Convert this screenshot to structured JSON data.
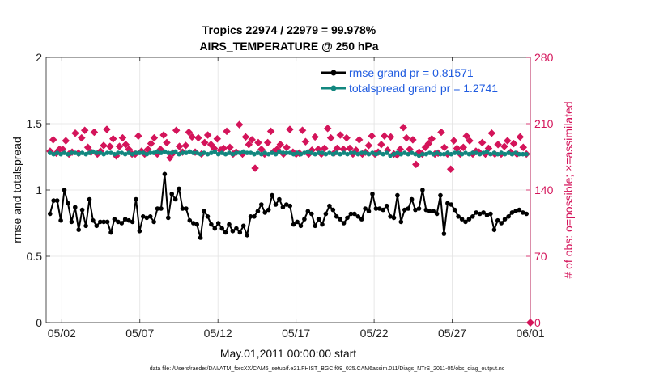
{
  "chart_data": {
    "type": "line",
    "title_line1": "Tropics 22974 / 22979 = 99.978%",
    "title_line2": "AIRS_TEMPERATURE @ 250 hPa",
    "xlabel": "May.01,2011 00:00:00 start",
    "ylabel": "rmse and totalspread",
    "y2label": "# of obs: o=possible; ×=assimilated",
    "xlim": [
      0,
      31
    ],
    "ylim": [
      0,
      2
    ],
    "y2lim": [
      0,
      280
    ],
    "x_ticks": [
      {
        "value": 1,
        "label": "05/02"
      },
      {
        "value": 6,
        "label": "05/07"
      },
      {
        "value": 11,
        "label": "05/12"
      },
      {
        "value": 16,
        "label": "05/17"
      },
      {
        "value": 21,
        "label": "05/22"
      },
      {
        "value": 26,
        "label": "05/27"
      },
      {
        "value": 31,
        "label": "06/01"
      }
    ],
    "y_ticks": [
      {
        "value": 0,
        "label": "0"
      },
      {
        "value": 0.5,
        "label": "0.5"
      },
      {
        "value": 1,
        "label": "1"
      },
      {
        "value": 1.5,
        "label": "1.5"
      },
      {
        "value": 2,
        "label": "2"
      }
    ],
    "y2_ticks": [
      {
        "value": 0,
        "label": "0"
      },
      {
        "value": 70,
        "label": "70"
      },
      {
        "value": 140,
        "label": "140"
      },
      {
        "value": 210,
        "label": "210"
      },
      {
        "value": 280,
        "label": "280"
      }
    ],
    "legend": [
      {
        "name": "rmse grand pr = 0.81571",
        "color": "#000000"
      },
      {
        "name": "totalspread grand pr = 1.2741",
        "color": "#12877f"
      }
    ],
    "series": [
      {
        "name": "rmse",
        "color": "#000000",
        "values": [
          0.82,
          0.92,
          0.92,
          0.77,
          1.0,
          0.9,
          0.76,
          0.87,
          0.7,
          0.85,
          0.73,
          0.93,
          0.77,
          0.73,
          0.76,
          0.76,
          0.76,
          0.68,
          0.78,
          0.76,
          0.75,
          0.78,
          0.77,
          0.76,
          0.93,
          0.69,
          0.8,
          0.79,
          0.8,
          0.76,
          0.86,
          0.86,
          1.12,
          0.79,
          0.97,
          0.93,
          1.01,
          0.86,
          0.86,
          0.77,
          0.75,
          0.74,
          0.64,
          0.84,
          0.8,
          0.74,
          0.71,
          0.75,
          0.71,
          0.68,
          0.74,
          0.69,
          0.71,
          0.68,
          0.73,
          0.66,
          0.8,
          0.8,
          0.84,
          0.89,
          0.83,
          0.85,
          0.96,
          0.89,
          0.93,
          0.87,
          0.89,
          0.88,
          0.74,
          0.76,
          0.73,
          0.78,
          0.84,
          0.82,
          0.73,
          0.78,
          0.74,
          0.82,
          0.88,
          0.85,
          0.8,
          0.78,
          0.75,
          0.79,
          0.82,
          0.82,
          0.8,
          0.78,
          0.86,
          0.84,
          0.97,
          0.86,
          0.86,
          0.85,
          0.88,
          0.8,
          0.79,
          0.96,
          0.76,
          0.85,
          0.86,
          0.93,
          0.85,
          0.86,
          1.0,
          0.85,
          0.84,
          0.84,
          0.82,
          0.96,
          0.67,
          0.9,
          0.89,
          0.85,
          0.8,
          0.78,
          0.76,
          0.78,
          0.8,
          0.83,
          0.82,
          0.83,
          0.81,
          0.82,
          0.7,
          0.77,
          0.75,
          0.78,
          0.8,
          0.83,
          0.84,
          0.85,
          0.83,
          0.82
        ]
      },
      {
        "name": "totalspread",
        "color": "#12877f",
        "values": [
          1.28,
          1.27,
          1.28,
          1.27,
          1.28,
          1.27,
          1.28,
          1.28,
          1.27,
          1.28,
          1.27,
          1.28,
          1.29,
          1.28,
          1.28,
          1.27,
          1.28,
          1.28,
          1.27,
          1.28,
          1.28,
          1.27,
          1.28,
          1.27,
          1.28,
          1.28,
          1.28,
          1.27,
          1.28,
          1.28,
          1.29,
          1.28,
          1.29,
          1.28,
          1.28,
          1.29,
          1.27,
          1.28,
          1.28,
          1.29,
          1.28,
          1.28,
          1.27,
          1.28,
          1.27,
          1.28,
          1.29,
          1.27,
          1.28,
          1.27,
          1.28,
          1.27,
          1.28,
          1.28,
          1.29,
          1.28,
          1.28,
          1.27,
          1.28,
          1.27,
          1.28,
          1.27,
          1.28,
          1.27,
          1.29,
          1.28,
          1.28,
          1.28,
          1.27,
          1.28,
          1.27,
          1.28,
          1.29,
          1.28,
          1.27,
          1.28,
          1.28,
          1.27,
          1.28,
          1.27,
          1.28,
          1.27,
          1.28,
          1.27,
          1.28,
          1.28,
          1.27,
          1.28,
          1.28,
          1.27,
          1.28,
          1.27,
          1.28,
          1.27,
          1.28,
          1.26,
          1.27,
          1.28,
          1.27,
          1.28,
          1.27,
          1.28,
          1.27,
          1.26,
          1.27,
          1.27,
          1.28,
          1.27,
          1.28,
          1.27,
          1.27,
          1.28,
          1.27,
          1.28,
          1.28,
          1.27,
          1.28,
          1.27,
          1.28,
          1.28,
          1.27,
          1.28,
          1.29,
          1.27,
          1.28,
          1.27,
          1.28,
          1.27,
          1.28,
          1.27,
          1.28,
          1.27,
          1.27,
          1.27
        ]
      },
      {
        "name": "obs assimilated",
        "color": "#d4145a",
        "values": [
          181,
          193,
          179,
          183,
          183,
          192,
          178,
          180,
          200,
          179,
          195,
          203,
          185,
          180,
          201,
          178,
          181,
          187,
          204,
          186,
          194,
          176,
          186,
          195,
          188,
          183,
          178,
          178,
          197,
          181,
          178,
          183,
          189,
          195,
          178,
          183,
          198,
          190,
          174,
          179,
          203,
          186,
          180,
          187,
          201,
          196,
          180,
          195,
          178,
          190,
          198,
          188,
          184,
          194,
          182,
          184,
          202,
          185,
          178,
          180,
          209,
          178,
          196,
          188,
          193,
          163,
          190,
          183,
          178,
          190,
          202,
          181,
          183,
          188,
          178,
          185,
          204,
          180,
          178,
          179,
          203,
          191,
          178,
          182,
          196,
          183,
          178,
          184,
          205,
          195,
          179,
          184,
          198,
          183,
          195,
          184,
          178,
          182,
          193,
          178,
          180,
          187,
          197,
          178,
          180,
          188,
          197,
          182,
          196,
          178,
          177,
          183,
          206,
          195,
          183,
          193,
          167,
          180,
          178,
          185,
          189,
          194,
          178,
          179,
          201,
          185,
          178,
          162,
          192,
          184,
          178,
          185,
          197,
          192,
          178,
          181,
          180,
          190,
          178,
          184,
          200,
          178,
          188,
          178,
          186,
          192,
          180,
          189,
          178,
          196,
          185,
          178
        ]
      },
      {
        "name": "obs possible",
        "color": "#d4145a",
        "values": [
          0
        ]
      }
    ]
  },
  "footnote": "data file: /Users/raeder/DAI/ATM_forcXX/CAM6_setup/f.e21.FHIST_BGC.f09_025.CAM6assim.011/Diags_NTrS_2011-05/obs_diag_output.nc"
}
